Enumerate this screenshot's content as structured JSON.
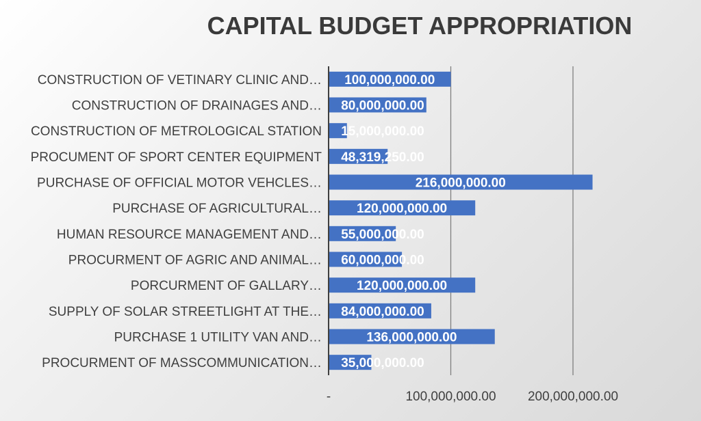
{
  "chart_data": {
    "type": "bar",
    "orientation": "horizontal",
    "title": "CAPITAL BUDGET APPROPRIATION",
    "categories": [
      "CONSTRUCTION OF VETINARY CLINIC AND…",
      "CONSTRUCTION OF DRAINAGES AND…",
      "CONSTRUCTION OF METROLOGICAL STATION",
      "PROCUMENT OF SPORT CENTER EQUIPMENT",
      "PURCHASE OF OFFICIAL MOTOR VEHCLES…",
      "PURCHASE OF AGRICULTURAL…",
      "HUMAN RESOURCE MANAGEMENT AND…",
      "PROCURMENT OF AGRIC AND ANIMAL…",
      "PORCURMENT OF GALLARY…",
      "SUPPLY OF SOLAR STREETLIGHT AT THE…",
      "PURCHASE 1 UTILITY VAN AND…",
      "PROCURMENT OF MASSCOMMUNICATION…"
    ],
    "values": [
      100000000,
      80000000,
      15000000,
      48319250,
      216000000,
      120000000,
      55000000,
      60000000,
      120000000,
      84000000,
      136000000,
      35000000
    ],
    "data_labels": [
      "100,000,000.00",
      "80,000,000.00",
      "15,000,000.00",
      "48,319,250.00",
      "216,000,000.00",
      "120,000,000.00",
      "55,000,000.00",
      "60,000,000.00",
      "120,000,000.00",
      "84,000,000.00",
      "136,000,000.00",
      "35,000,000.00"
    ],
    "x_ticks": [
      {
        "value": 0,
        "label": "-"
      },
      {
        "value": 100000000,
        "label": "100,000,000.00"
      },
      {
        "value": 200000000,
        "label": "200,000,000.00"
      }
    ],
    "xlim": [
      0,
      250000000
    ],
    "grid": true,
    "legend": "none",
    "bar_color": "#4472C4",
    "grid_color": "#7f7f7f"
  }
}
